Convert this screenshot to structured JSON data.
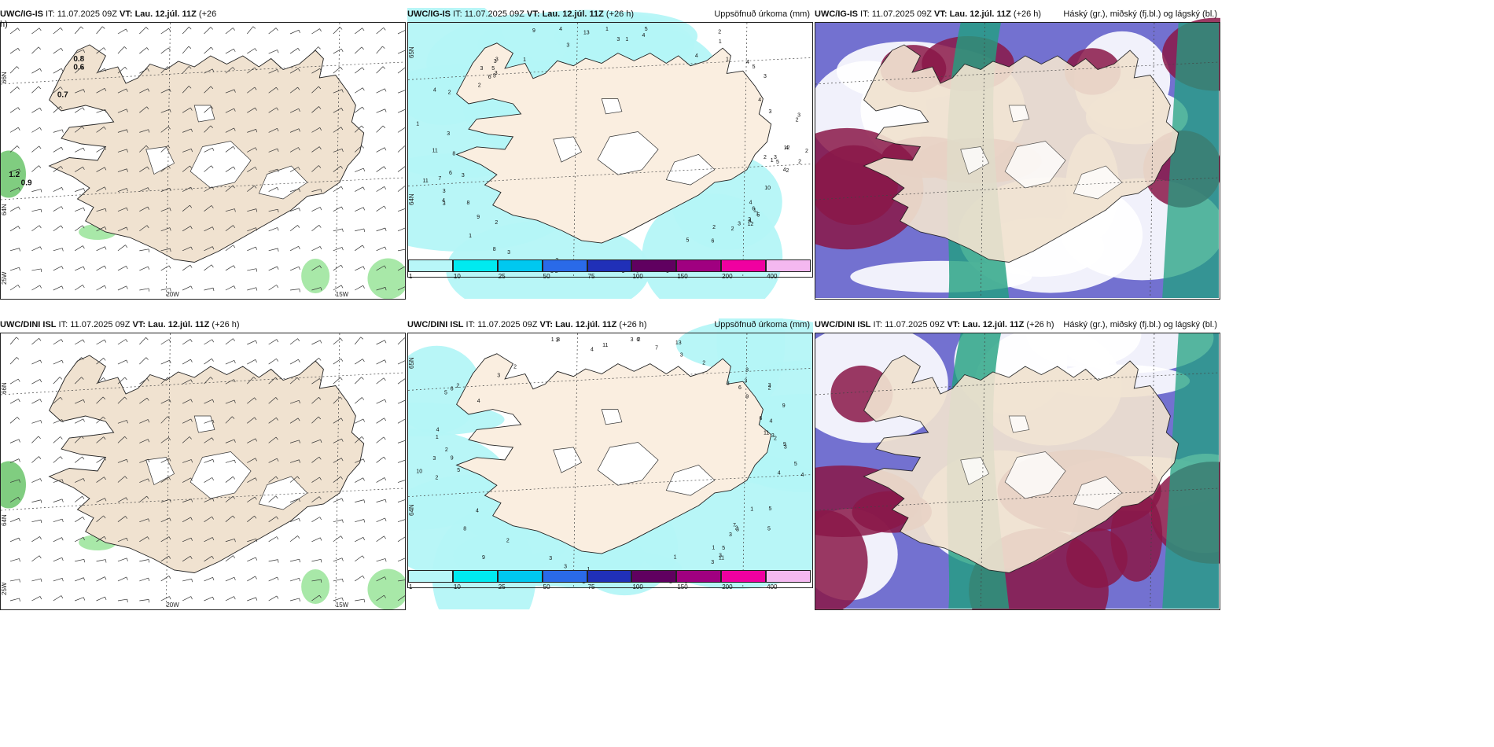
{
  "panels": [
    {
      "id": "p1",
      "row": 0,
      "col": 0,
      "kind": "wind",
      "model": "UWC/IG-IS",
      "it": "IT: 11.07.2025 09Z",
      "vt": "VT: Lau. 12.júl. 11Z",
      "lead": "(+26",
      "lead2": "h)",
      "right": "",
      "lat_labels": [
        "66N",
        "64N",
        "25W"
      ],
      "lon_labels": [
        "20W",
        "15W"
      ],
      "values": [
        "0.8",
        "0.6",
        "0.7",
        "1.2",
        "0.9"
      ]
    },
    {
      "id": "p2",
      "row": 0,
      "col": 1,
      "kind": "precip",
      "model": "UWC/IG-IS",
      "it": "IT: 11.07.2025 09Z",
      "vt": "VT: Lau. 12.júl. 11Z",
      "lead": "(+26 h)",
      "right": "Uppsöfnuð úrkoma (mm)",
      "lat_labels": [
        "65N",
        "64N"
      ],
      "lon_labels": [],
      "values": [
        "8",
        "4",
        "3",
        "3",
        "6",
        "4",
        "3",
        "5",
        "2",
        "1",
        "4",
        "5",
        "5",
        "3",
        "3",
        "2",
        "9",
        "3",
        "2",
        "10",
        "11",
        "1",
        "1",
        "4",
        "6",
        "3",
        "2",
        "1",
        "7",
        "5",
        "8",
        "6",
        "4",
        "3",
        "11",
        "12",
        "8",
        "5",
        "6",
        "4",
        "3",
        "9",
        "12",
        "13",
        "4",
        "3",
        "2",
        "3",
        "1",
        "2",
        "4",
        "3",
        "3",
        "1",
        "1",
        "21",
        "2",
        "3",
        "1",
        "2",
        "3",
        "2",
        "5",
        "4",
        "6",
        "3",
        "4",
        "2",
        "1",
        "1",
        "1",
        "3",
        "2",
        "5",
        "6",
        "6",
        "5",
        "2",
        "4",
        "3",
        "4",
        "3"
      ]
    },
    {
      "id": "p3",
      "row": 0,
      "col": 2,
      "kind": "cloud",
      "model": "UWC/IG-IS",
      "it": "IT: 11.07.2025 09Z",
      "vt": "VT: Lau. 12.júl. 11Z",
      "lead": "(+26 h)",
      "right": "Háský (gr.), miðský (fj.bl.) og lágský (bl.)",
      "lat_labels": [],
      "lon_labels": [],
      "values": []
    },
    {
      "id": "p4",
      "row": 1,
      "col": 0,
      "kind": "wind",
      "model": "UWC/DINI ISL",
      "it": "IT: 11.07.2025 09Z",
      "vt": "VT: Lau. 12.júl. 11Z",
      "lead": "(+26 h)",
      "right": "",
      "lat_labels": [
        "66N",
        "64N",
        "25W"
      ],
      "lon_labels": [
        "20W",
        "15W"
      ],
      "values": []
    },
    {
      "id": "p5",
      "row": 1,
      "col": 1,
      "kind": "precip",
      "model": "UWC/DINI ISL",
      "it": "IT: 11.07.2025 09Z",
      "vt": "VT: Lau. 12.júl. 11Z",
      "lead": "(+26 h)",
      "right": "Uppsöfnuð úrkoma (mm)",
      "lat_labels": [
        "65N",
        "64N"
      ],
      "lon_labels": [],
      "values": [
        "5",
        "11",
        "11",
        "4",
        "3",
        "2",
        "4",
        "5",
        "3",
        "5",
        "3",
        "7",
        "3",
        "6",
        "3",
        "5",
        "2",
        "13",
        "11",
        "10",
        "9",
        "4",
        "2",
        "1",
        "2",
        "3",
        "3",
        "6",
        "4",
        "2",
        "5",
        "7",
        "9",
        "9",
        "8",
        "9",
        "9",
        "6",
        "5",
        "3",
        "2",
        "4",
        "1",
        "2",
        "4",
        "3",
        "2",
        "2",
        "3",
        "3",
        "1",
        "1",
        "3",
        "6",
        "3",
        "3",
        "2",
        "3",
        "4",
        "3",
        "1",
        "2",
        "1",
        "1",
        "3",
        "3",
        "3",
        "3"
      ]
    },
    {
      "id": "p6",
      "row": 1,
      "col": 2,
      "kind": "cloud",
      "model": "UWC/DINI ISL",
      "it": "IT: 11.07.2025 09Z",
      "vt": "VT: Lau. 12.júl. 11Z",
      "lead": "(+26 h)",
      "right": "Háský (gr.), miðský (fj.bl.) og lágský (bl.)",
      "lat_labels": [],
      "lon_labels": [],
      "values": []
    }
  ],
  "colorbar": {
    "ticks": [
      "1",
      "10",
      "25",
      "50",
      "75",
      "100",
      "150",
      "200",
      "400"
    ],
    "colors": [
      "#b8f6f8",
      "#00eaf0",
      "#00c8f0",
      "#2a6ae8",
      "#2030b8",
      "#600060",
      "#a00080",
      "#f000a0",
      "#f4b8f0"
    ]
  },
  "colors": {
    "land": "#f0e2d0",
    "land_light": "#faeee0",
    "ice": "#ffffff",
    "precip_light": "#b4f5f7",
    "wind_green": "#a8e8a8",
    "cloud_high": "#20a080",
    "cloud_mid": "#5a58c8",
    "cloud_low": "#8a1848"
  }
}
